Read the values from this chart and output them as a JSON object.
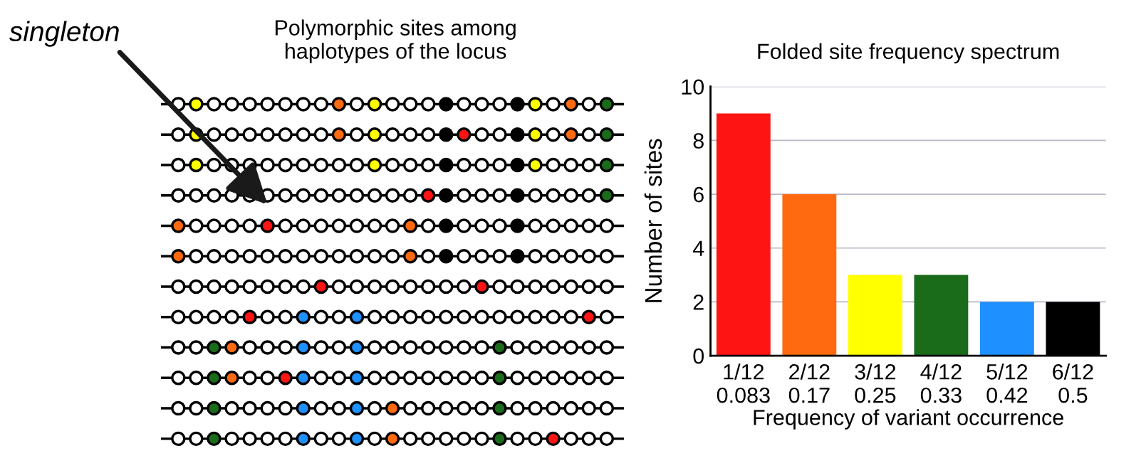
{
  "chart_data": [
    {
      "type": "other",
      "title": "Polymorphic sites among\nhaplotypes of the locus",
      "annotations": [
        "singleton"
      ]
    },
    {
      "type": "bar",
      "title": "Folded site frequency spectrum",
      "xlabel": "Frequency of variant occurrence",
      "ylabel": "Number of sites",
      "categories": [
        "1/12\n0.083",
        "2/12\n0.17",
        "3/12\n0.25",
        "4/12\n0.33",
        "5/12\n0.42",
        "6/12\n0.5"
      ],
      "values": [
        9,
        6,
        3,
        3,
        2,
        2
      ],
      "colors": [
        "#ff1414",
        "#ff6a10",
        "#ffff00",
        "#1a6b1a",
        "#1e90ff",
        "#000000"
      ],
      "ylim": [
        0,
        10
      ],
      "yticks": [
        0,
        2,
        4,
        6,
        8,
        10
      ],
      "grid": "y"
    }
  ]
}
